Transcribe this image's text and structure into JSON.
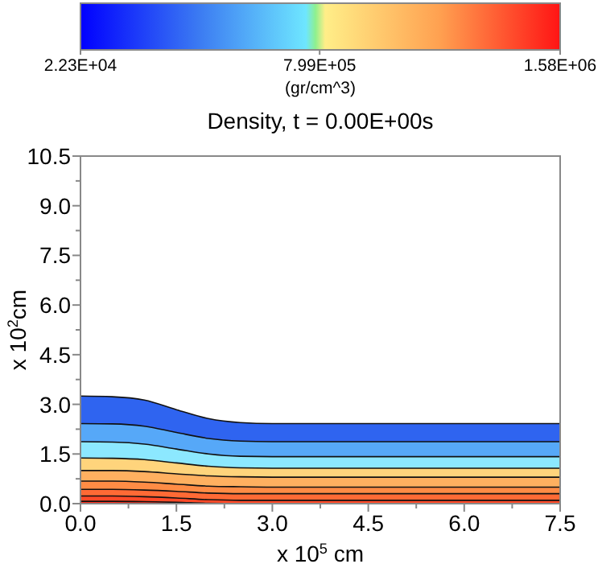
{
  "chart_data": {
    "type": "area",
    "stacked": true,
    "title": "Density, t = 0.00E+00s",
    "xlabel": "x 10$^{5}$ cm",
    "ylabel": "x 10$^{2}$cm",
    "clabel": "(gr/cm^3)",
    "x": [
      0,
      0.5,
      1,
      1.5,
      2,
      2.5,
      3,
      7.5
    ],
    "xlim": [
      0,
      7.5
    ],
    "ylim": [
      0,
      10.5
    ],
    "xticks": [
      {
        "value": 0,
        "label": "0.0"
      },
      {
        "value": 0.75,
        "label": null
      },
      {
        "value": 1.5,
        "label": "1.5"
      },
      {
        "value": 2.25,
        "label": null
      },
      {
        "value": 3,
        "label": "3.0"
      },
      {
        "value": 3.75,
        "label": null
      },
      {
        "value": 4.5,
        "label": "4.5"
      },
      {
        "value": 5.25,
        "label": null
      },
      {
        "value": 6,
        "label": "6.0"
      },
      {
        "value": 6.75,
        "label": null
      },
      {
        "value": 7.5,
        "label": "7.5"
      }
    ],
    "yticks": [
      {
        "value": 0,
        "label": "0.0"
      },
      {
        "value": 0.75,
        "label": null
      },
      {
        "value": 1.5,
        "label": "1.5"
      },
      {
        "value": 2.25,
        "label": null
      },
      {
        "value": 3,
        "label": "3.0"
      },
      {
        "value": 3.75,
        "label": null
      },
      {
        "value": 4.5,
        "label": "4.5"
      },
      {
        "value": 5.25,
        "label": null
      },
      {
        "value": 6,
        "label": "6.0"
      },
      {
        "value": 6.75,
        "label": null
      },
      {
        "value": 7.5,
        "label": "7.5"
      },
      {
        "value": 8.25,
        "label": null
      },
      {
        "value": 9,
        "label": "9.0"
      },
      {
        "value": 9.75,
        "label": null
      },
      {
        "value": 10.5,
        "label": "10.5"
      }
    ],
    "clim": [
      22300,
      1580000
    ],
    "cticks": [
      {
        "value": 22300,
        "label": "2.23E+04"
      },
      {
        "value": 799000,
        "label": "7.99E+05"
      },
      {
        "value": 1580000,
        "label": "1.58E+06"
      }
    ],
    "series": [
      {
        "color": "#ff2a1a",
        "values": [
          0.07,
          0.07,
          0.06,
          0.04,
          0.01,
          0,
          0,
          0
        ]
      },
      {
        "color": "#ff4a28",
        "values": [
          0.16,
          0.16,
          0.15,
          0.13,
          0.11,
          0.1,
          0.1,
          0.1
        ]
      },
      {
        "color": "#ff6a35",
        "values": [
          0.2,
          0.2,
          0.2,
          0.2,
          0.2,
          0.2,
          0.2,
          0.2
        ]
      },
      {
        "color": "#ff8c45",
        "values": [
          0.25,
          0.25,
          0.24,
          0.22,
          0.21,
          0.21,
          0.2,
          0.2
        ]
      },
      {
        "color": "#ffb060",
        "values": [
          0.32,
          0.32,
          0.32,
          0.31,
          0.31,
          0.3,
          0.3,
          0.3
        ]
      },
      {
        "color": "#ffd47c",
        "values": [
          0.38,
          0.37,
          0.36,
          0.33,
          0.29,
          0.27,
          0.27,
          0.27
        ]
      },
      {
        "color": "#8ce8ff",
        "values": [
          0.49,
          0.49,
          0.47,
          0.42,
          0.37,
          0.35,
          0.35,
          0.35
        ]
      },
      {
        "color": "#56a8f8",
        "values": [
          0.55,
          0.55,
          0.54,
          0.5,
          0.47,
          0.46,
          0.45,
          0.45
        ]
      },
      {
        "color": "#2f64f0",
        "values": [
          0.83,
          0.82,
          0.79,
          0.69,
          0.6,
          0.56,
          0.55,
          0.55
        ]
      }
    ]
  }
}
